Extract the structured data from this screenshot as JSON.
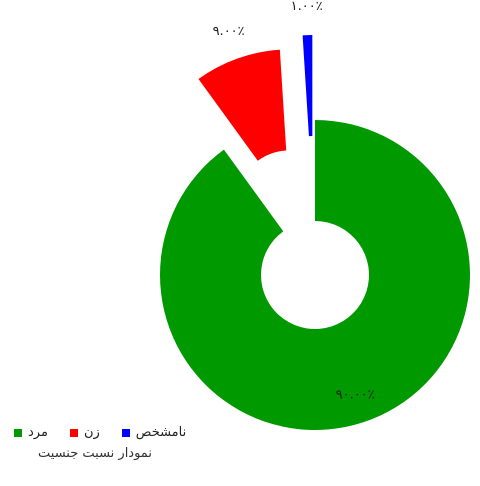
{
  "chart_data": {
    "type": "pie",
    "title": "نمودار نسبت جنسیت",
    "slices": [
      {
        "label": "مرد",
        "value": 90.0,
        "display": "۹۰.۰۰٪",
        "color": "#009900"
      },
      {
        "label": "زن",
        "value": 9.0,
        "display": "۹.۰۰٪",
        "color": "#ff0000"
      },
      {
        "label": "نامشخص",
        "value": 1.0,
        "display": "۱.۰۰٪",
        "color": "#0000ff"
      }
    ],
    "exploded": true,
    "donut": true,
    "legend_position": "bottom-left"
  }
}
